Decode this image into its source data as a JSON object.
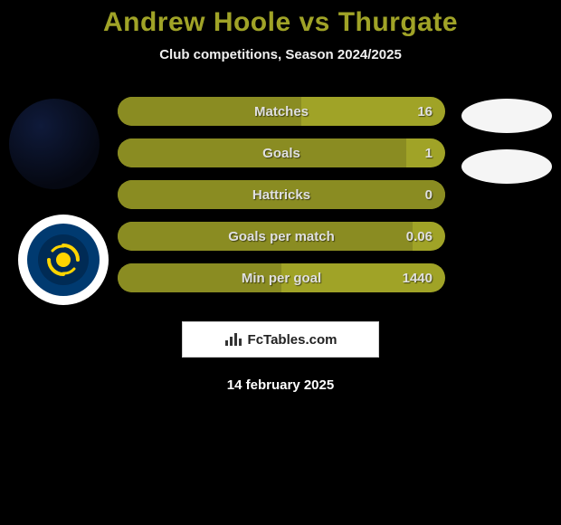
{
  "colors": {
    "page_bg": "#000000",
    "title_color": "#a0a327",
    "pill_bg": "#a0a327",
    "pill_fill": "#8a8c22",
    "text_light": "#e0e0e0"
  },
  "header": {
    "title": "Andrew Hoole vs Thurgate",
    "subtitle": "Club competitions, Season 2024/2025"
  },
  "left_avatars": {
    "player_placeholder": "dark-circle",
    "club_badge_name": "central-coast-mariners"
  },
  "stats": [
    {
      "label": "Matches",
      "value": "16",
      "fill_pct": 56
    },
    {
      "label": "Goals",
      "value": "1",
      "fill_pct": 88
    },
    {
      "label": "Hattricks",
      "value": "0",
      "fill_pct": 100
    },
    {
      "label": "Goals per match",
      "value": "0.06",
      "fill_pct": 90
    },
    {
      "label": "Min per goal",
      "value": "1440",
      "fill_pct": 50
    }
  ],
  "right_ovals_count": 2,
  "footer": {
    "source_label": "FcTables.com",
    "date": "14 february 2025"
  }
}
